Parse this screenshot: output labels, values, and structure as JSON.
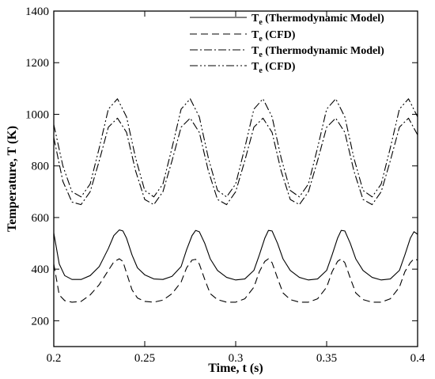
{
  "chart_data": {
    "type": "line",
    "title": "",
    "xlabel": "Time, t (s)",
    "ylabel": "Temperature, T (K)",
    "xlim": [
      0.2,
      0.4
    ],
    "ylim": [
      100,
      1400
    ],
    "x_ticks": [
      0.2,
      0.25,
      0.3,
      0.35,
      0.4
    ],
    "x_tick_labels": [
      "0.2",
      "0.25",
      "0.3",
      "0.35",
      "0.4"
    ],
    "y_ticks": [
      200,
      400,
      600,
      800,
      1000,
      1200,
      1400
    ],
    "y_tick_labels": [
      "200",
      "400",
      "600",
      "800",
      "1000",
      "1200",
      "1400"
    ],
    "grid": false,
    "legend_position": "top-right",
    "series": [
      {
        "name": "Te (Thermodynamic Model)",
        "legend_main": "T",
        "legend_sub": "e",
        "legend_rest": " (Thermodynamic Model)",
        "style": "solid",
        "x": [
          0.2,
          0.203,
          0.206,
          0.21,
          0.215,
          0.22,
          0.225,
          0.23,
          0.233,
          0.236,
          0.238,
          0.24,
          0.243,
          0.246,
          0.25,
          0.255,
          0.26,
          0.265,
          0.27,
          0.273,
          0.276,
          0.278,
          0.28,
          0.283,
          0.286,
          0.29,
          0.295,
          0.3,
          0.305,
          0.31,
          0.313,
          0.316,
          0.318,
          0.32,
          0.323,
          0.326,
          0.33,
          0.335,
          0.34,
          0.345,
          0.35,
          0.353,
          0.356,
          0.358,
          0.36,
          0.363,
          0.366,
          0.37,
          0.375,
          0.38,
          0.385,
          0.39,
          0.393,
          0.396,
          0.398,
          0.4
        ],
        "y": [
          540,
          420,
          375,
          360,
          360,
          375,
          410,
          480,
          530,
          552,
          548,
          520,
          455,
          405,
          378,
          362,
          360,
          372,
          410,
          475,
          530,
          550,
          545,
          500,
          440,
          395,
          368,
          358,
          362,
          395,
          455,
          520,
          550,
          548,
          500,
          440,
          395,
          368,
          358,
          362,
          395,
          455,
          520,
          550,
          548,
          500,
          440,
          395,
          368,
          358,
          362,
          395,
          455,
          520,
          545,
          535
        ]
      },
      {
        "name": "Te (CFD)",
        "legend_main": "T",
        "legend_sub": "e",
        "legend_rest": " (CFD)",
        "style": "dashed",
        "x": [
          0.2,
          0.203,
          0.206,
          0.21,
          0.215,
          0.22,
          0.225,
          0.23,
          0.233,
          0.236,
          0.238,
          0.24,
          0.243,
          0.246,
          0.25,
          0.255,
          0.26,
          0.265,
          0.27,
          0.273,
          0.276,
          0.278,
          0.28,
          0.283,
          0.286,
          0.29,
          0.295,
          0.3,
          0.305,
          0.31,
          0.313,
          0.316,
          0.318,
          0.32,
          0.323,
          0.326,
          0.33,
          0.335,
          0.34,
          0.345,
          0.35,
          0.353,
          0.356,
          0.358,
          0.36,
          0.363,
          0.366,
          0.37,
          0.375,
          0.38,
          0.385,
          0.39,
          0.393,
          0.396,
          0.398,
          0.4
        ],
        "y": [
          420,
          300,
          278,
          272,
          275,
          300,
          340,
          395,
          428,
          440,
          430,
          385,
          320,
          288,
          275,
          272,
          280,
          305,
          350,
          405,
          435,
          438,
          420,
          360,
          305,
          282,
          272,
          272,
          285,
          330,
          390,
          430,
          440,
          425,
          365,
          308,
          282,
          272,
          272,
          285,
          330,
          390,
          430,
          440,
          425,
          365,
          308,
          282,
          272,
          272,
          285,
          330,
          390,
          425,
          440,
          435
        ]
      },
      {
        "name": "Te (Thermodynamic Model)",
        "legend_main": "T",
        "legend_sub": "e",
        "legend_rest": " (Thermodynamic Model)",
        "style": "dashdot",
        "x": [
          0.2,
          0.205,
          0.21,
          0.215,
          0.22,
          0.225,
          0.23,
          0.235,
          0.24,
          0.245,
          0.25,
          0.255,
          0.26,
          0.265,
          0.27,
          0.275,
          0.28,
          0.285,
          0.29,
          0.295,
          0.3,
          0.305,
          0.31,
          0.315,
          0.32,
          0.325,
          0.33,
          0.335,
          0.34,
          0.345,
          0.35,
          0.355,
          0.36,
          0.365,
          0.37,
          0.375,
          0.38,
          0.385,
          0.39,
          0.395,
          0.4
        ],
        "y": [
          910,
          740,
          660,
          650,
          700,
          820,
          950,
          985,
          930,
          780,
          670,
          650,
          700,
          820,
          950,
          985,
          930,
          780,
          670,
          650,
          700,
          820,
          950,
          985,
          930,
          780,
          670,
          650,
          700,
          820,
          950,
          985,
          930,
          780,
          670,
          650,
          700,
          820,
          950,
          985,
          920
        ]
      },
      {
        "name": "Te (CFD)",
        "legend_main": "T",
        "legend_sub": "e",
        "legend_rest": " (CFD)",
        "style": "dashdotdot",
        "x": [
          0.2,
          0.205,
          0.21,
          0.215,
          0.22,
          0.225,
          0.23,
          0.235,
          0.24,
          0.245,
          0.25,
          0.255,
          0.26,
          0.265,
          0.27,
          0.275,
          0.28,
          0.285,
          0.29,
          0.295,
          0.3,
          0.305,
          0.31,
          0.315,
          0.32,
          0.325,
          0.33,
          0.335,
          0.34,
          0.345,
          0.35,
          0.355,
          0.36,
          0.365,
          0.37,
          0.375,
          0.38,
          0.385,
          0.39,
          0.395,
          0.4
        ],
        "y": [
          960,
          800,
          700,
          680,
          730,
          870,
          1020,
          1060,
          990,
          830,
          705,
          680,
          730,
          870,
          1020,
          1060,
          990,
          830,
          705,
          680,
          730,
          870,
          1020,
          1060,
          990,
          830,
          705,
          680,
          730,
          870,
          1020,
          1060,
          990,
          830,
          705,
          680,
          730,
          870,
          1020,
          1060,
          990
        ]
      }
    ]
  }
}
